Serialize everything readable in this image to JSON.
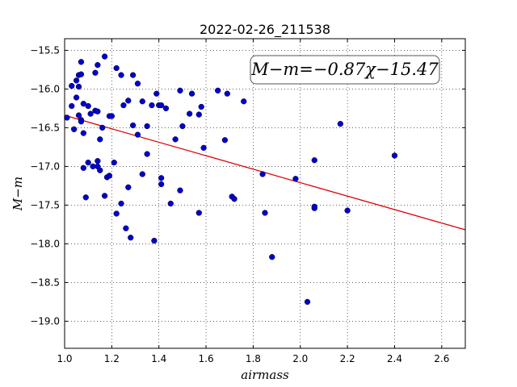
{
  "chart_data": {
    "type": "scatter",
    "title": "2022-02-26_211538",
    "xlabel": "airmass",
    "ylabel": "M−m",
    "xlim": [
      1.0,
      2.7
    ],
    "ylim": [
      -19.35,
      -15.35
    ],
    "y_inverted": false,
    "grid": true,
    "x_ticks": [
      1.0,
      1.2,
      1.4,
      1.6,
      1.8,
      2.0,
      2.2,
      2.4,
      2.6
    ],
    "x_tick_labels": [
      "1.0",
      "1.2",
      "1.4",
      "1.6",
      "1.8",
      "2.0",
      "2.2",
      "2.4",
      "2.6"
    ],
    "y_ticks": [
      -15.5,
      -16.0,
      -16.5,
      -17.0,
      -17.5,
      -18.0,
      -18.5,
      -19.0
    ],
    "y_tick_labels": [
      "−15.5",
      "−16.0",
      "−16.5",
      "−17.0",
      "−17.5",
      "−18.0",
      "−18.5",
      "−19.0"
    ],
    "annotation": "M−m=−0.87χ−15.47",
    "point_color": "#0000cc",
    "fit_color": "#dd0000",
    "fit": {
      "slope": -0.87,
      "intercept": -15.47,
      "x": [
        1.0,
        2.7
      ]
    },
    "points": [
      [
        1.01,
        -16.37
      ],
      [
        1.03,
        -16.22
      ],
      [
        1.03,
        -15.96
      ],
      [
        1.04,
        -16.52
      ],
      [
        1.05,
        -15.89
      ],
      [
        1.05,
        -16.11
      ],
      [
        1.06,
        -15.82
      ],
      [
        1.06,
        -15.97
      ],
      [
        1.06,
        -16.34
      ],
      [
        1.07,
        -16.4
      ],
      [
        1.07,
        -16.42
      ],
      [
        1.07,
        -15.81
      ],
      [
        1.07,
        -15.65
      ],
      [
        1.08,
        -16.19
      ],
      [
        1.08,
        -16.57
      ],
      [
        1.08,
        -17.02
      ],
      [
        1.09,
        -17.4
      ],
      [
        1.1,
        -16.22
      ],
      [
        1.1,
        -16.95
      ],
      [
        1.11,
        -16.32
      ],
      [
        1.12,
        -17.0
      ],
      [
        1.13,
        -15.79
      ],
      [
        1.13,
        -16.28
      ],
      [
        1.14,
        -15.69
      ],
      [
        1.14,
        -16.29
      ],
      [
        1.14,
        -16.93
      ],
      [
        1.14,
        -17.0
      ],
      [
        1.15,
        -16.65
      ],
      [
        1.15,
        -17.05
      ],
      [
        1.16,
        -16.5
      ],
      [
        1.17,
        -15.58
      ],
      [
        1.17,
        -17.38
      ],
      [
        1.18,
        -17.14
      ],
      [
        1.19,
        -16.35
      ],
      [
        1.19,
        -17.12
      ],
      [
        1.2,
        -16.35
      ],
      [
        1.21,
        -16.95
      ],
      [
        1.22,
        -15.73
      ],
      [
        1.22,
        -17.61
      ],
      [
        1.24,
        -15.82
      ],
      [
        1.24,
        -17.48
      ],
      [
        1.25,
        -16.21
      ],
      [
        1.26,
        -17.8
      ],
      [
        1.27,
        -17.27
      ],
      [
        1.27,
        -16.15
      ],
      [
        1.28,
        -17.92
      ],
      [
        1.29,
        -16.47
      ],
      [
        1.29,
        -15.82
      ],
      [
        1.31,
        -15.93
      ],
      [
        1.31,
        -16.59
      ],
      [
        1.33,
        -17.1
      ],
      [
        1.33,
        -16.16
      ],
      [
        1.35,
        -16.84
      ],
      [
        1.35,
        -16.48
      ],
      [
        1.37,
        -16.21
      ],
      [
        1.38,
        -17.96
      ],
      [
        1.39,
        -16.06
      ],
      [
        1.4,
        -16.21
      ],
      [
        1.41,
        -17.15
      ],
      [
        1.41,
        -17.23
      ],
      [
        1.41,
        -16.21
      ],
      [
        1.43,
        -16.25
      ],
      [
        1.45,
        -17.48
      ],
      [
        1.47,
        -16.65
      ],
      [
        1.49,
        -16.02
      ],
      [
        1.49,
        -17.31
      ],
      [
        1.5,
        -16.48
      ],
      [
        1.53,
        -16.32
      ],
      [
        1.54,
        -16.06
      ],
      [
        1.57,
        -17.6
      ],
      [
        1.57,
        -16.33
      ],
      [
        1.58,
        -16.23
      ],
      [
        1.59,
        -16.76
      ],
      [
        1.65,
        -16.02
      ],
      [
        1.68,
        -16.66
      ],
      [
        1.69,
        -16.06
      ],
      [
        1.71,
        -17.39
      ],
      [
        1.72,
        -17.42
      ],
      [
        1.76,
        -16.16
      ],
      [
        1.84,
        -17.1
      ],
      [
        1.85,
        -17.6
      ],
      [
        1.88,
        -18.17
      ],
      [
        1.98,
        -17.16
      ],
      [
        2.03,
        -18.75
      ],
      [
        2.06,
        -17.54
      ],
      [
        2.06,
        -17.52
      ],
      [
        2.06,
        -16.92
      ],
      [
        2.17,
        -16.45
      ],
      [
        2.2,
        -17.57
      ],
      [
        2.4,
        -16.86
      ]
    ]
  }
}
